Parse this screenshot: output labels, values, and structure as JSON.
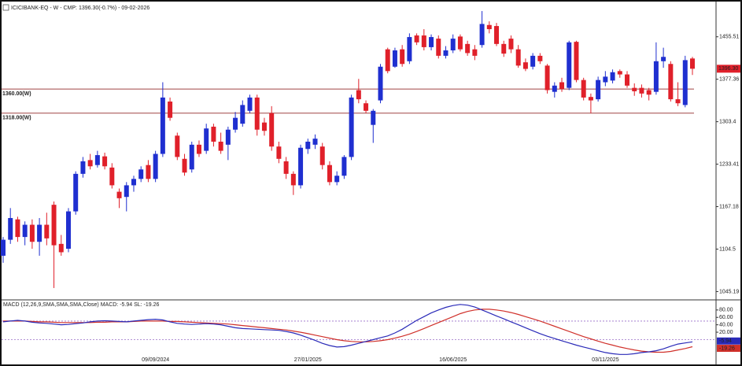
{
  "chart_data": [
    {
      "type": "candlestick",
      "title": "ICICIBANK-EQ - W - CMP: 1396.30(-0.7%) - 09-02-2026",
      "categories": [
        null,
        null,
        null,
        null,
        null,
        null,
        null,
        null,
        null,
        null,
        null,
        null,
        null,
        null,
        null,
        null,
        null,
        null,
        null,
        null,
        null,
        "09/09/2024",
        null,
        null,
        null,
        null,
        null,
        null,
        null,
        null,
        null,
        null,
        null,
        null,
        null,
        null,
        null,
        null,
        null,
        null,
        null,
        null,
        "27/01/2025",
        null,
        null,
        null,
        null,
        null,
        null,
        null,
        null,
        null,
        null,
        null,
        null,
        null,
        null,
        null,
        null,
        null,
        null,
        null,
        "16/06/2025",
        null,
        null,
        null,
        null,
        null,
        null,
        null,
        null,
        null,
        null,
        null,
        null,
        null,
        null,
        null,
        null,
        null,
        null,
        null,
        null,
        "03/11/2025",
        null,
        null,
        null,
        null,
        null,
        null,
        null,
        null,
        null,
        null,
        null,
        null
      ],
      "open": [
        1095,
        1118,
        1148,
        1122,
        1140,
        1115,
        1140,
        1170,
        1112,
        1105,
        1160,
        1218,
        1240,
        1232,
        1246,
        1228,
        1190,
        1182,
        1200,
        1210,
        1232,
        1210,
        1250,
        1338,
        1280,
        1242,
        1225,
        1265,
        1255,
        1295,
        1270,
        1265,
        1290,
        1300,
        1322,
        1345,
        1302,
        1318,
        1262,
        1238,
        1218,
        1200,
        1258,
        1265,
        1262,
        1232,
        1205,
        1215,
        1245,
        1358,
        1335,
        1298,
        1340,
        1432,
        1400,
        1432,
        1410,
        1458,
        1458,
        1436,
        1452,
        1420,
        1430,
        1456,
        1442,
        1432,
        1440,
        1478,
        1476,
        1442,
        1452,
        1432,
        1408,
        1400,
        1420,
        1402,
        1355,
        1372,
        1362,
        1446,
        1376,
        1346,
        1342,
        1372,
        1375,
        1392,
        1386,
        1362,
        1362,
        1358,
        1355,
        1410,
        1405,
        1342,
        1332,
        1415
      ],
      "high": [
        1122,
        1165,
        1152,
        1145,
        1148,
        1150,
        1158,
        1175,
        1125,
        1165,
        1222,
        1245,
        1250,
        1255,
        1252,
        1235,
        1195,
        1205,
        1215,
        1230,
        1240,
        1255,
        1372,
        1345,
        1285,
        1250,
        1270,
        1272,
        1300,
        1300,
        1285,
        1295,
        1320,
        1340,
        1350,
        1350,
        1310,
        1330,
        1270,
        1245,
        1222,
        1265,
        1275,
        1282,
        1268,
        1238,
        1222,
        1248,
        1350,
        1378,
        1340,
        1325,
        1405,
        1435,
        1435,
        1440,
        1462,
        1462,
        1470,
        1460,
        1458,
        1438,
        1460,
        1460,
        1448,
        1440,
        1505,
        1485,
        1482,
        1448,
        1458,
        1440,
        1415,
        1425,
        1425,
        1405,
        1372,
        1380,
        1448,
        1448,
        1380,
        1352,
        1382,
        1392,
        1395,
        1395,
        1392,
        1370,
        1368,
        1362,
        1445,
        1435,
        1410,
        1372,
        1420,
        1418
      ],
      "low": [
        1085,
        1112,
        1115,
        1110,
        1105,
        1095,
        1110,
        1050,
        1095,
        1100,
        1155,
        1212,
        1225,
        1228,
        1225,
        1195,
        1165,
        1160,
        1190,
        1205,
        1205,
        1205,
        1245,
        1305,
        1240,
        1215,
        1220,
        1245,
        1250,
        1262,
        1250,
        1240,
        1285,
        1295,
        1318,
        1280,
        1280,
        1255,
        1235,
        1210,
        1185,
        1195,
        1250,
        1258,
        1225,
        1200,
        1200,
        1210,
        1240,
        1335,
        1318,
        1268,
        1335,
        1388,
        1398,
        1400,
        1405,
        1440,
        1430,
        1430,
        1415,
        1415,
        1425,
        1428,
        1420,
        1412,
        1435,
        1462,
        1438,
        1418,
        1425,
        1398,
        1392,
        1395,
        1405,
        1352,
        1345,
        1355,
        1358,
        1372,
        1340,
        1318,
        1338,
        1365,
        1370,
        1380,
        1362,
        1348,
        1345,
        1340,
        1350,
        1398,
        1338,
        1330,
        1328,
        1385
      ],
      "close": [
        1118,
        1150,
        1122,
        1140,
        1115,
        1140,
        1120,
        1110,
        1100,
        1160,
        1218,
        1238,
        1230,
        1248,
        1230,
        1200,
        1180,
        1200,
        1210,
        1225,
        1210,
        1250,
        1345,
        1310,
        1245,
        1220,
        1265,
        1250,
        1292,
        1270,
        1255,
        1290,
        1310,
        1332,
        1345,
        1290,
        1288,
        1262,
        1242,
        1218,
        1200,
        1260,
        1270,
        1275,
        1232,
        1205,
        1215,
        1245,
        1345,
        1342,
        1322,
        1322,
        1400,
        1392,
        1430,
        1405,
        1455,
        1445,
        1436,
        1455,
        1420,
        1430,
        1452,
        1432,
        1425,
        1420,
        1480,
        1470,
        1442,
        1424,
        1432,
        1402,
        1396,
        1420,
        1410,
        1358,
        1366,
        1360,
        1445,
        1376,
        1345,
        1340,
        1376,
        1382,
        1390,
        1386,
        1366,
        1356,
        1352,
        1350,
        1410,
        1418,
        1342,
        1335,
        1412,
        1396.3
      ],
      "cmp_label": "1396.30",
      "up_color": "#1f2fd0",
      "down_color": "#e0202a",
      "log_scale": true,
      "ylim": [
        1035,
        1519
      ],
      "yticks": [
        1455.51,
        1377.36,
        1303.4,
        1233.41,
        1167.18,
        1104.5,
        1045.19
      ],
      "hlines": [
        {
          "value": 1360,
          "label": "1360.00(W)"
        },
        {
          "value": 1318,
          "label": "1318.00(W)"
        }
      ],
      "hline_color": "#a04545"
    },
    {
      "type": "line",
      "title": "MACD (12,26,9,SMA,SMA,SMA,Close) MACD: -5.94 SL: -19.26",
      "series": [
        {
          "name": "MACD",
          "color": "#2a2ab8",
          "values": [
            48,
            50,
            52,
            50,
            47,
            45,
            44,
            42,
            40,
            41,
            43,
            45,
            48,
            50,
            51,
            50,
            49,
            48,
            50,
            52,
            54,
            55,
            53,
            48,
            44,
            42,
            41,
            42,
            43,
            42,
            40,
            36,
            32,
            30,
            29,
            28,
            27,
            26,
            25,
            22,
            18,
            12,
            5,
            -2,
            -10,
            -16,
            -20,
            -19,
            -15,
            -10,
            -5,
            0,
            5,
            10,
            18,
            28,
            40,
            52,
            62,
            72,
            80,
            87,
            92,
            95,
            93,
            88,
            80,
            72,
            64,
            56,
            48,
            40,
            32,
            24,
            16,
            9,
            3,
            -3,
            -9,
            -15,
            -20,
            -25,
            -30,
            -35,
            -38,
            -40,
            -40,
            -38,
            -35,
            -33,
            -30,
            -25,
            -18,
            -12,
            -9,
            -5.94
          ]
        },
        {
          "name": "SL",
          "color": "#d0302a",
          "values": [
            50,
            50,
            50,
            50,
            49,
            48,
            48,
            47,
            46,
            46,
            46,
            46,
            46,
            47,
            47,
            48,
            48,
            48,
            49,
            50,
            50,
            50,
            50,
            49,
            49,
            48,
            47,
            46,
            45,
            44,
            43,
            42,
            40,
            38,
            36,
            34,
            32,
            30,
            28,
            26,
            23,
            20,
            16,
            12,
            8,
            4,
            0,
            -3,
            -5,
            -6,
            -6,
            -5,
            -3,
            0,
            4,
            9,
            15,
            22,
            30,
            38,
            46,
            54,
            62,
            70,
            76,
            80,
            82,
            82,
            80,
            77,
            73,
            68,
            62,
            56,
            50,
            43,
            36,
            29,
            22,
            15,
            8,
            2,
            -4,
            -10,
            -15,
            -20,
            -24,
            -28,
            -31,
            -33,
            -34,
            -34,
            -32,
            -28,
            -24,
            -19.26
          ]
        }
      ],
      "ylim": [
        -50,
        103
      ],
      "yticks": [
        {
          "value": 80,
          "label": "80.00"
        },
        {
          "value": 60,
          "label": "60.00"
        },
        {
          "value": 40,
          "label": "40.00"
        },
        {
          "value": 20,
          "label": "20.00"
        }
      ],
      "levels": [
        50,
        0
      ],
      "level_color": "#9a6fc8"
    }
  ]
}
